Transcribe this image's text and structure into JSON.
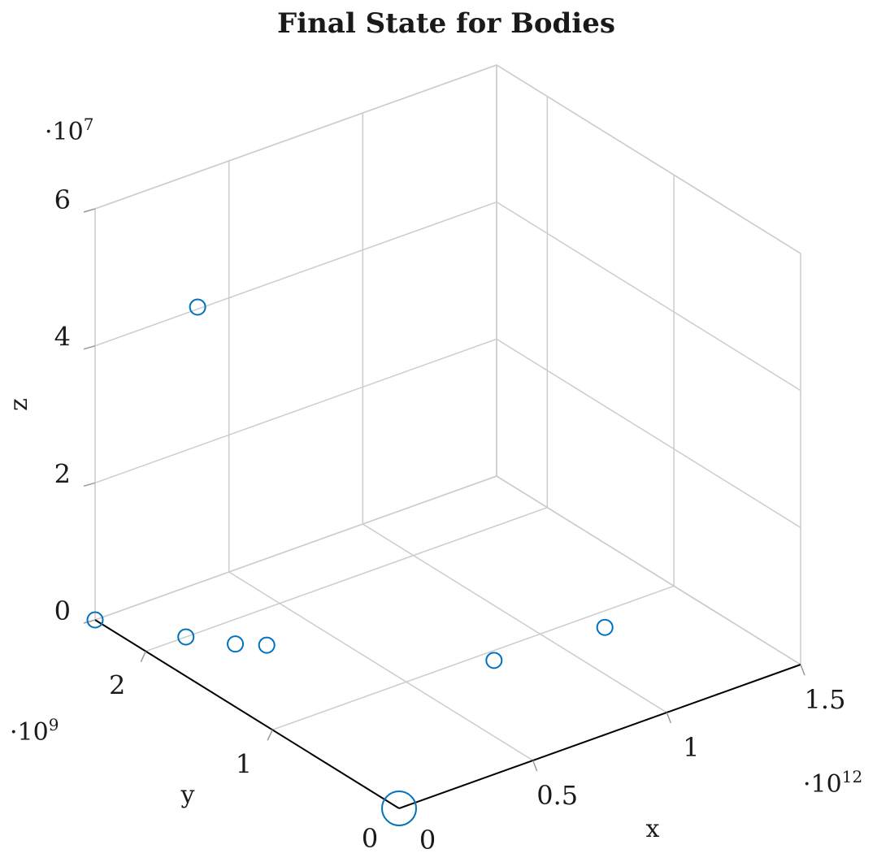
{
  "chart_data": {
    "type": "scatter3d",
    "title": "Final State for Bodies",
    "xlabel": "x",
    "ylabel": "y",
    "zlabel": "z",
    "x_multiplier": "·10",
    "x_exponent": "12",
    "y_multiplier": "·10",
    "y_exponent": "9",
    "z_multiplier": "·10",
    "z_exponent": "7",
    "xlim": [
      0,
      1.5
    ],
    "ylim": [
      0,
      2.4
    ],
    "zlim": [
      0,
      6
    ],
    "x_ticks": [
      {
        "value": 0.5,
        "label": "0.5"
      },
      {
        "value": 1,
        "label": "1"
      },
      {
        "value": 1.5,
        "label": "1.5"
      }
    ],
    "y_ticks": [
      {
        "value": 1,
        "label": "1"
      },
      {
        "value": 2,
        "label": "2"
      }
    ],
    "z_ticks": [
      {
        "value": 0,
        "label": "0"
      },
      {
        "value": 2,
        "label": "2"
      },
      {
        "value": 4,
        "label": "4"
      },
      {
        "value": 6,
        "label": "6"
      }
    ],
    "origin_x_label": "0",
    "origin_y_label": "0",
    "grid": true,
    "marker_color": "#0072bd",
    "points": [
      {
        "x": 0.0,
        "y": 0.0,
        "z": 0.0,
        "size": "large"
      },
      {
        "x": 0.0,
        "y": 2.4,
        "z": 0.0,
        "size": "small"
      },
      {
        "x": 0.15,
        "y": 2.0,
        "z": 0.0,
        "size": "small"
      },
      {
        "x": 0.24,
        "y": 1.8,
        "z": 0.0,
        "size": "small"
      },
      {
        "x": 0.31,
        "y": 1.7,
        "z": 0.0,
        "size": "small"
      },
      {
        "x": 0.26,
        "y": 2.14,
        "z": 4.5,
        "size": "small"
      },
      {
        "x": 0.79,
        "y": 0.92,
        "z": 0.0,
        "size": "small"
      },
      {
        "x": 1.1,
        "y": 0.7,
        "z": 0.3,
        "size": "small"
      }
    ]
  }
}
